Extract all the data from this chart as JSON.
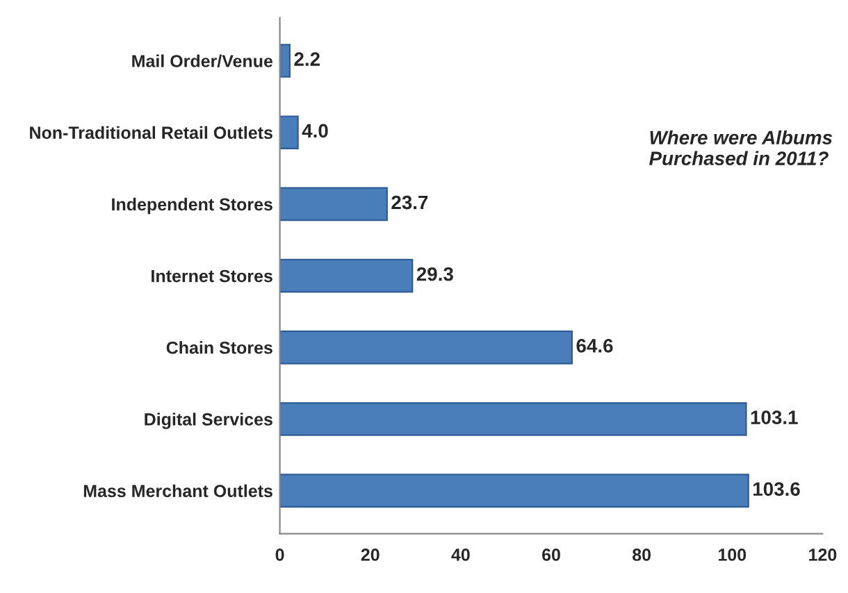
{
  "chart_data": {
    "type": "bar",
    "orientation": "horizontal",
    "categories": [
      "Mail Order/Venue",
      "Non-Traditional Retail Outlets",
      "Independent Stores",
      "Internet Stores",
      "Chain Stores",
      "Digital Services",
      "Mass Merchant Outlets"
    ],
    "values": [
      2.2,
      4.0,
      23.7,
      29.3,
      64.6,
      103.1,
      103.6
    ],
    "value_labels": [
      "2.2",
      "4.0",
      "23.7",
      "29.3",
      "64.6",
      "103.1",
      "103.6"
    ],
    "color": "#4a7ebb",
    "xlim": [
      0,
      120
    ],
    "xticks": [
      0,
      20,
      40,
      60,
      80,
      100,
      120
    ],
    "grid": false,
    "legend": false,
    "annotations": [
      "Where were Albums Purchased in 2011?"
    ]
  }
}
